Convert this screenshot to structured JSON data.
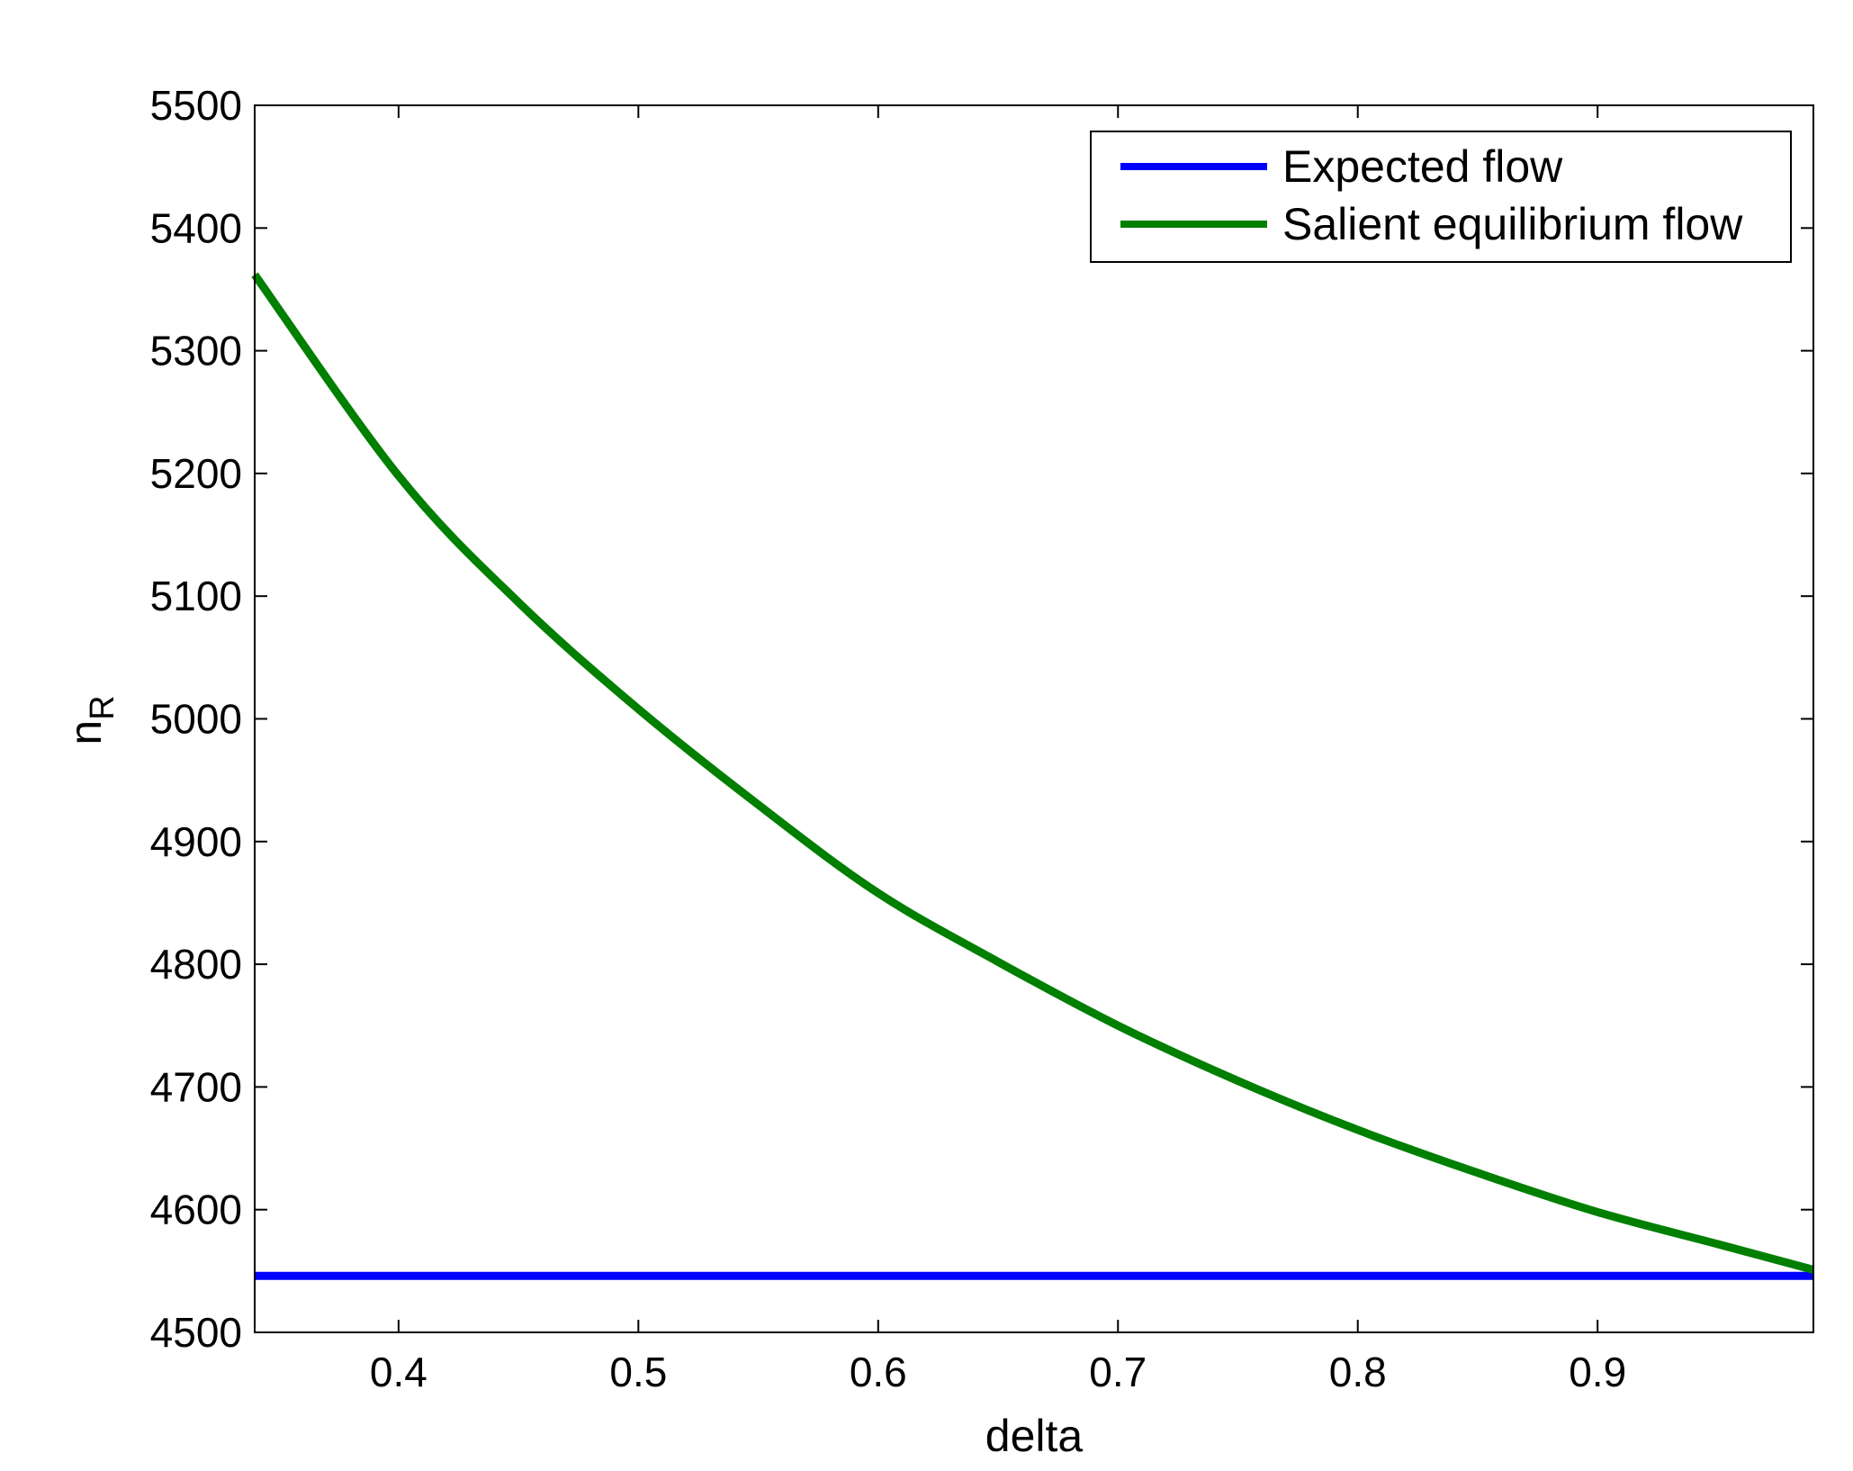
{
  "chart_data": {
    "type": "line",
    "xlabel": "delta",
    "ylabel": "n",
    "ylabel_sub": "R",
    "xlim": [
      0.34,
      0.99
    ],
    "ylim": [
      4500,
      5500
    ],
    "xticks": [
      "0.4",
      "0.5",
      "0.6",
      "0.7",
      "0.8",
      "0.9"
    ],
    "yticks": [
      "4500",
      "4600",
      "4700",
      "4800",
      "4900",
      "5000",
      "5100",
      "5200",
      "5300",
      "5400",
      "5500"
    ],
    "legend_position": "top-right",
    "series": [
      {
        "name": "Expected flow",
        "color": "#0000ff",
        "x": [
          0.34,
          0.99
        ],
        "y": [
          4546,
          4546
        ]
      },
      {
        "name": "Salient equilibrium flow",
        "color": "#007f00",
        "x": [
          0.34,
          0.4,
          0.45,
          0.5,
          0.55,
          0.6,
          0.65,
          0.7,
          0.75,
          0.8,
          0.85,
          0.9,
          0.95,
          0.99
        ],
        "y": [
          5362,
          5198,
          5095,
          5008,
          4930,
          4858,
          4802,
          4750,
          4705,
          4665,
          4630,
          4598,
          4572,
          4551
        ]
      }
    ]
  }
}
